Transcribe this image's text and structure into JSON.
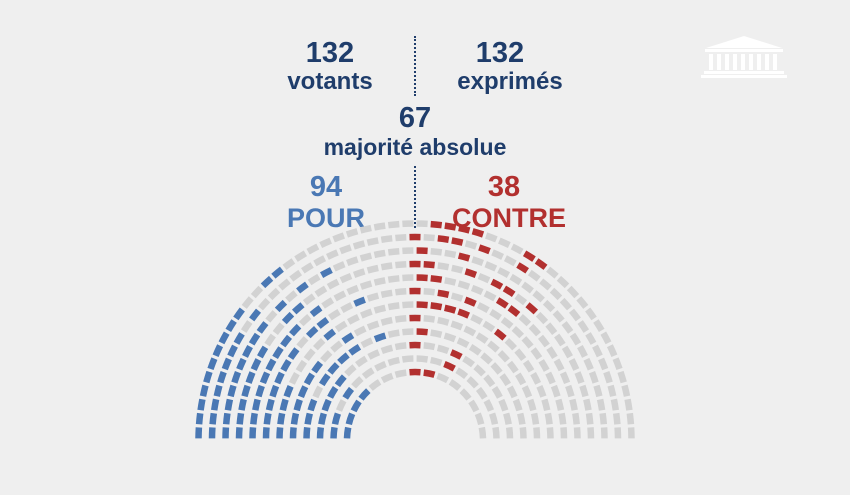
{
  "stats": {
    "votants": {
      "value": "132",
      "label": "votants"
    },
    "exprimes": {
      "value": "132",
      "label": "exprimés"
    },
    "majorite": {
      "value": "67",
      "label": "majorité absolue"
    },
    "pour": {
      "value": "94",
      "label": "POUR"
    },
    "contre": {
      "value": "38",
      "label": "CONTRE"
    }
  },
  "colors": {
    "navy": "#1f3d6b",
    "pour": "#4a78b4",
    "contre": "#b2302f",
    "seat_empty": "#d2d2d2",
    "background": "#efefef"
  },
  "icons": {
    "logo": "assemblee-nationale-building-icon"
  },
  "hemicycle": {
    "pour": 94,
    "contre": 38
  }
}
